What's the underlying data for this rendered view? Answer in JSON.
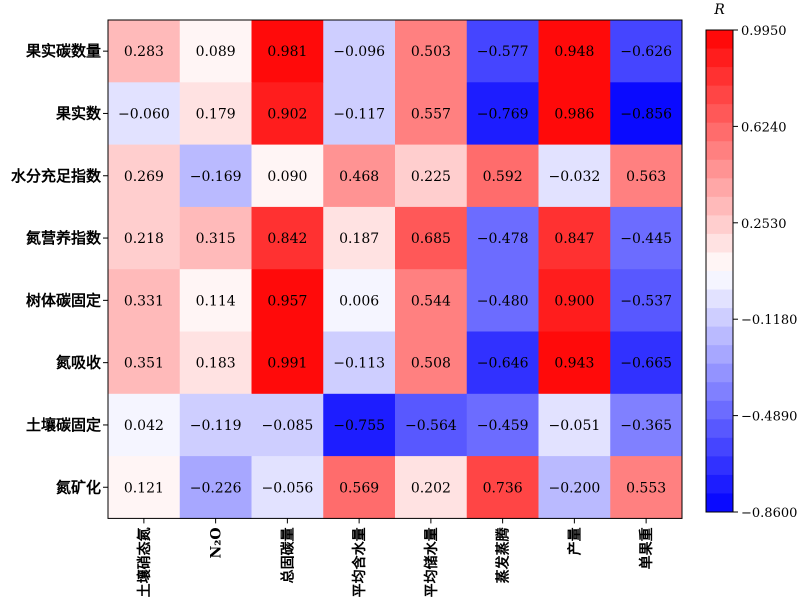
{
  "chart_data": {
    "type": "heatmap",
    "rows": [
      "果实碳数量",
      "果实数",
      "水分充足指数",
      "氮营养指数",
      "树体碳固定",
      "氮吸收",
      "土壤碳固定",
      "氮矿化"
    ],
    "columns": [
      "土壤硝态氮",
      "N₂O",
      "总固碳量",
      "平均含水量",
      "平均储水量",
      "蒸发蒸腾",
      "产量",
      "单果重"
    ],
    "values": [
      [
        0.283,
        0.089,
        0.981,
        -0.096,
        0.503,
        -0.577,
        0.948,
        -0.626
      ],
      [
        -0.06,
        0.179,
        0.902,
        -0.117,
        0.557,
        -0.769,
        0.986,
        -0.856
      ],
      [
        0.269,
        -0.169,
        0.09,
        0.468,
        0.225,
        0.592,
        -0.032,
        0.563
      ],
      [
        0.218,
        0.315,
        0.842,
        0.187,
        0.685,
        -0.478,
        0.847,
        -0.445
      ],
      [
        0.331,
        0.114,
        0.957,
        0.006,
        0.544,
        -0.48,
        0.9,
        -0.537
      ],
      [
        0.351,
        0.183,
        0.991,
        -0.113,
        0.508,
        -0.646,
        0.943,
        -0.665
      ],
      [
        0.042,
        -0.119,
        -0.085,
        -0.755,
        -0.564,
        -0.459,
        -0.051,
        -0.365
      ],
      [
        0.121,
        -0.226,
        -0.056,
        0.569,
        0.202,
        0.736,
        -0.2,
        0.553
      ]
    ],
    "value_labels": [
      [
        "0.283",
        "0.089",
        "0.981",
        "−0.096",
        "0.503",
        "−0.577",
        "0.948",
        "−0.626"
      ],
      [
        "−0.060",
        "0.179",
        "0.902",
        "−0.117",
        "0.557",
        "−0.769",
        "0.986",
        "−0.856"
      ],
      [
        "0.269",
        "−0.169",
        "0.090",
        "0.468",
        "0.225",
        "0.592",
        "−0.032",
        "0.563"
      ],
      [
        "0.218",
        "0.315",
        "0.842",
        "0.187",
        "0.685",
        "−0.478",
        "0.847",
        "−0.445"
      ],
      [
        "0.331",
        "0.114",
        "0.957",
        "0.006",
        "0.544",
        "−0.480",
        "0.900",
        "−0.537"
      ],
      [
        "0.351",
        "0.183",
        "0.991",
        "−0.113",
        "0.508",
        "−0.646",
        "0.943",
        "−0.665"
      ],
      [
        "0.042",
        "−0.119",
        "−0.085",
        "−0.755",
        "−0.564",
        "−0.459",
        "−0.051",
        "−0.365"
      ],
      [
        "0.121",
        "−0.226",
        "−0.056",
        "0.569",
        "0.202",
        "0.736",
        "−0.200",
        "0.553"
      ]
    ],
    "colorbar": {
      "title": "R",
      "range": [
        -0.86,
        0.995
      ],
      "ticks": [
        0.995,
        0.624,
        0.253,
        -0.118,
        -0.489,
        -0.86
      ],
      "tick_labels": [
        "0.9950",
        "0.6240",
        "0.2530",
        "−0.1180",
        "−0.4890",
        "−0.8600"
      ],
      "steps": 26,
      "colors": {
        "high": "#ff0000",
        "mid": "#ffffff",
        "low": "#0000ff"
      }
    },
    "title": "",
    "xlabel": "",
    "ylabel": ""
  }
}
